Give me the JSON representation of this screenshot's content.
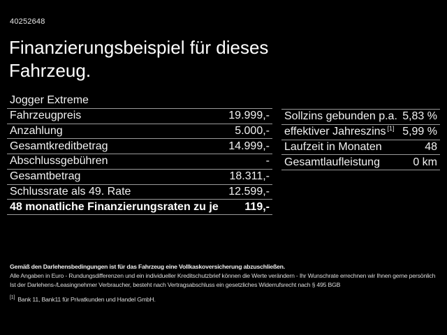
{
  "page": {
    "ref_number": "40252648",
    "title": "Finanzierungsbeispiel für dieses Fahrzeug."
  },
  "left_table": {
    "header": "Jogger Extreme",
    "rows": [
      {
        "label": "Fahrzeugpreis",
        "value": "19.999,-"
      },
      {
        "label": "Anzahlung",
        "value": "5.000,-"
      },
      {
        "label": "Gesamtkreditbetrag",
        "value": "14.999,-"
      },
      {
        "label": "Abschlussgebühren",
        "value": "-"
      },
      {
        "label": "Gesamtbetrag",
        "value": "18.311,-"
      },
      {
        "label": "Schlussrate als 49. Rate",
        "value": "12.599,-"
      },
      {
        "label": "48 monatliche Finanzierungsraten zu je",
        "value": "119,-"
      }
    ]
  },
  "right_table": {
    "rows": [
      {
        "label": "Sollzins gebunden p.a.",
        "value": "5,83 %"
      },
      {
        "label": "effektiver Jahreszins",
        "sup": "[1]",
        "value": "5,99 %"
      },
      {
        "label": "Laufzeit in Monaten",
        "value": "48"
      },
      {
        "label": "Gesamtlaufleistung",
        "value": "0 km"
      }
    ]
  },
  "footnotes": {
    "insurance_line": "Gemäß den Darlehensbedingungen ist für das Fahrzeug eine Vollkaskoversicherung abzuschließen.",
    "disclaimer_line": "Alle Angaben in Euro - Rundungsdifferenzen und ein individueller Kreditschutzbrief können die Werte verändern - Ihr Wunschrate errechnen wir Ihnen gerne persönlich",
    "withdrawal_line": "Ist der Darlehens-/Leasingnehmer Verbraucher, besteht nach Vertragsabschluss ein gesetzliches Widerrufsrecht nach § 495 BGB",
    "ref_marker": "[1]",
    "ref_text": "Bank 11, Bank11 für Privatkunden und Handel GmbH."
  },
  "colors": {
    "background": "#000000",
    "text": "#ffffff",
    "separator": "#9b9b9b"
  }
}
